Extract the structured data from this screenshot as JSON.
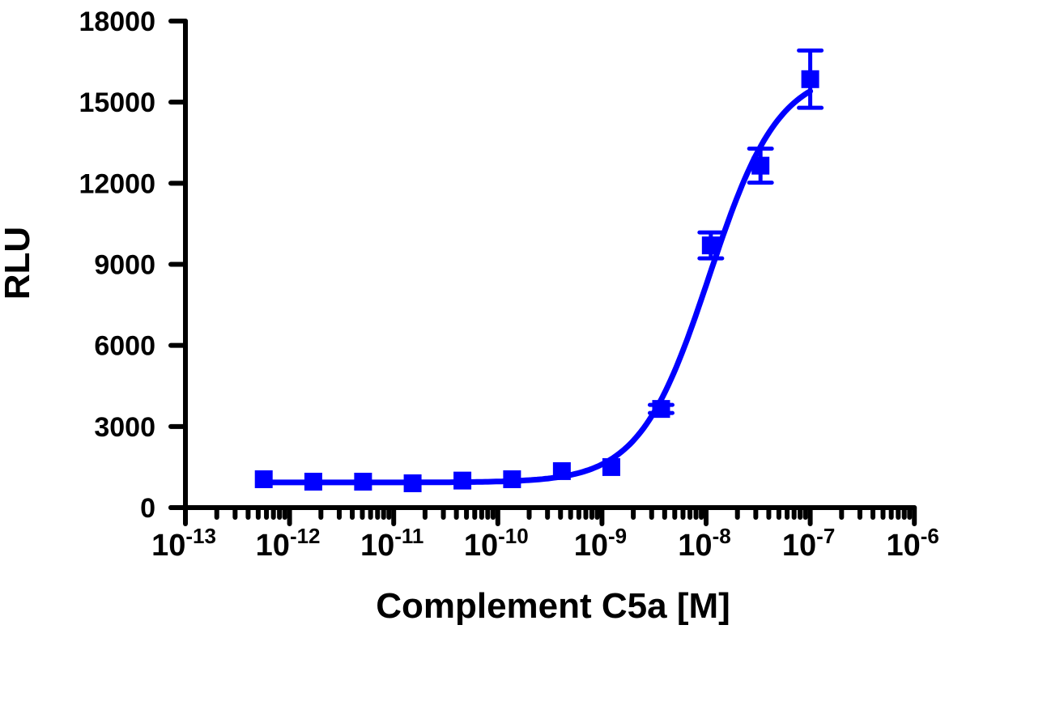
{
  "chart_data": {
    "type": "scatter",
    "title": "",
    "xlabel": "Complement C5a [M]",
    "ylabel": "RLU",
    "x_scale": "log",
    "xlim": [
      1e-13,
      1e-06
    ],
    "ylim": [
      0,
      18000
    ],
    "grid": false,
    "legend": "none",
    "color": "#0000ff",
    "x_tick_labels": [
      {
        "base": "10",
        "exp": "-13"
      },
      {
        "base": "10",
        "exp": "-12"
      },
      {
        "base": "10",
        "exp": "-11"
      },
      {
        "base": "10",
        "exp": "-10"
      },
      {
        "base": "10",
        "exp": "-9"
      },
      {
        "base": "10",
        "exp": "-8"
      },
      {
        "base": "10",
        "exp": "-7"
      },
      {
        "base": "10",
        "exp": "-6"
      }
    ],
    "y_tick_labels": [
      "0",
      "3000",
      "6000",
      "9000",
      "12000",
      "15000",
      "18000"
    ],
    "series": [
      {
        "marker": "square",
        "fit": "sigmoidal dose-response curve",
        "x": [
          5.65e-13,
          1.69e-12,
          5.08e-12,
          1.52e-11,
          4.57e-11,
          1.37e-10,
          4.12e-10,
          1.23e-09,
          3.7e-09,
          1.11e-08,
          3.33e-08,
          1e-07
        ],
        "y": [
          1050,
          960,
          960,
          900,
          1000,
          1050,
          1350,
          1500,
          3650,
          9700,
          12650,
          15850
        ],
        "error": [
          0,
          0,
          0,
          0,
          0,
          0,
          0,
          0,
          150,
          480,
          630,
          1060
        ]
      }
    ]
  }
}
